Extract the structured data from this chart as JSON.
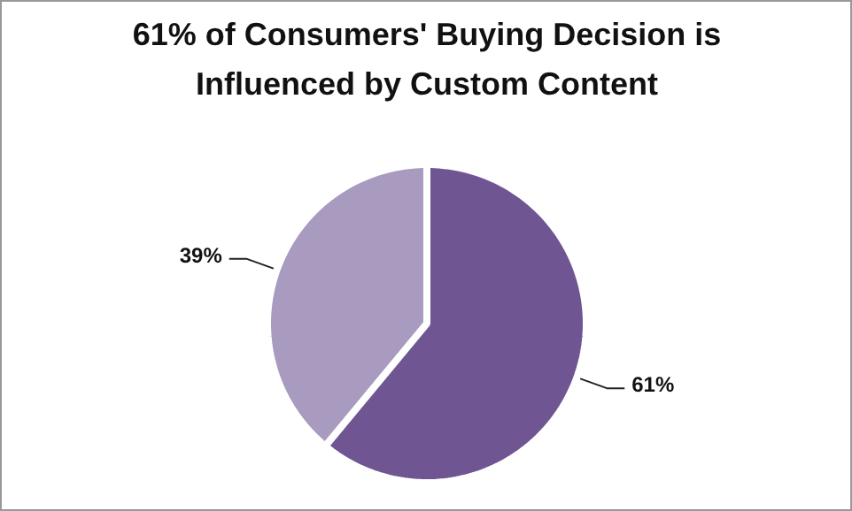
{
  "chart_data": {
    "type": "pie",
    "title": "61% of Consumers' Buying Decision is Influenced by Custom Content",
    "categories": [
      null,
      null
    ],
    "values": [
      39,
      61
    ],
    "colors": [
      "#a99bc0",
      "#6f5592"
    ],
    "value_labels": [
      "39%",
      "61%"
    ]
  }
}
